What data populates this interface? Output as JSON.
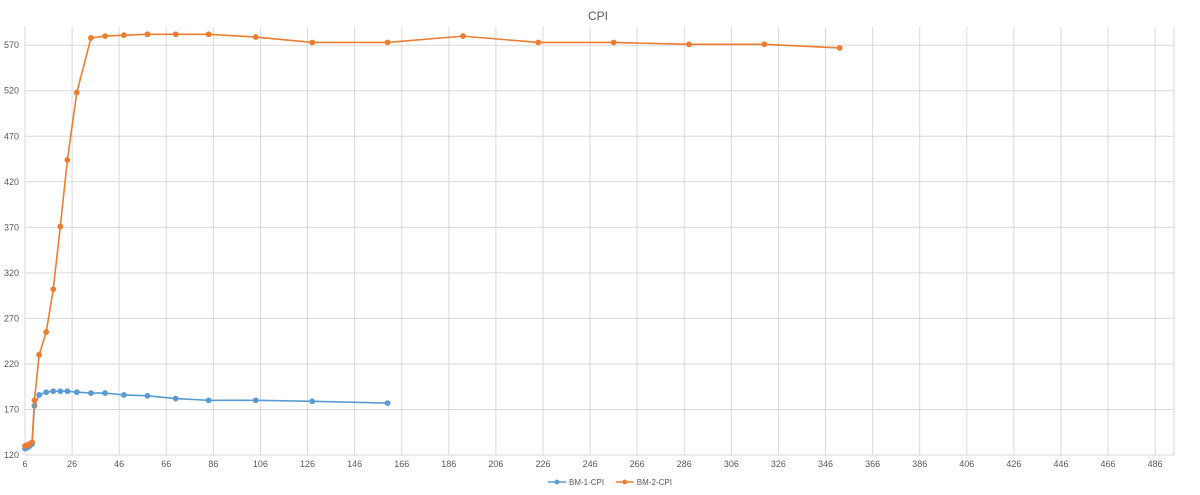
{
  "chart_data": {
    "type": "line",
    "title": "CPI",
    "xlabel": "",
    "ylabel": "",
    "xlim": [
      6,
      494
    ],
    "ylim": [
      120,
      590
    ],
    "x_ticks": [
      6,
      26,
      46,
      66,
      86,
      106,
      126,
      146,
      166,
      186,
      206,
      226,
      246,
      266,
      286,
      306,
      326,
      346,
      366,
      386,
      406,
      426,
      446,
      466,
      486
    ],
    "y_ticks": [
      120,
      170,
      220,
      270,
      320,
      370,
      420,
      470,
      520,
      570
    ],
    "grid": true,
    "legend_position": "bottom",
    "series": [
      {
        "name": "BM-1-CPI",
        "color": "#5B9BD5",
        "x": [
          6,
          7,
          8,
          9,
          10,
          12,
          15,
          18,
          21,
          24,
          28,
          34,
          40,
          48,
          58,
          70,
          84,
          104,
          128,
          160
        ],
        "y": [
          127,
          128,
          130,
          132,
          174,
          186,
          189,
          190,
          190,
          190,
          189,
          188,
          188,
          186,
          185,
          182,
          180,
          180,
          179,
          177
        ]
      },
      {
        "name": "BM-2-CPI",
        "color": "#ED7D31",
        "x": [
          6,
          7,
          8,
          9,
          10,
          12,
          15,
          18,
          21,
          24,
          28,
          34,
          40,
          48,
          58,
          70,
          84,
          104,
          128,
          160,
          192,
          224,
          256,
          288,
          320,
          352
        ],
        "y": [
          130,
          131,
          132,
          134,
          180,
          230,
          255,
          302,
          371,
          444,
          518,
          578,
          580,
          581,
          582,
          582,
          582,
          579,
          573,
          573,
          580,
          573,
          573,
          571,
          571,
          567
        ]
      }
    ]
  }
}
